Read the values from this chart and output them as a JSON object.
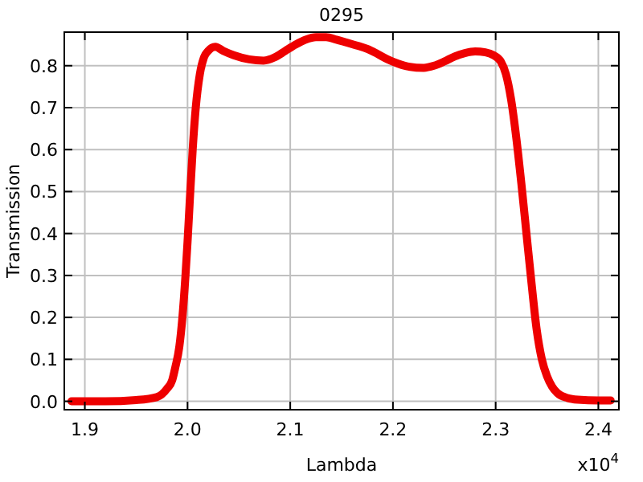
{
  "chart_data": {
    "type": "line",
    "title": "0295",
    "xlabel": "Lambda",
    "ylabel": "Transmission",
    "annotations": [
      "x10$^{4}$"
    ],
    "x": [
      1.887,
      1.92,
      1.95,
      1.97,
      1.98,
      1.985,
      1.988,
      1.992,
      1.995,
      1.998,
      2.0,
      2.002,
      2.005,
      2.008,
      2.012,
      2.016,
      2.02,
      2.027,
      2.035,
      2.045,
      2.06,
      2.074,
      2.085,
      2.095,
      2.105,
      2.115,
      2.125,
      2.135,
      2.145,
      2.155,
      2.165,
      2.175,
      2.185,
      2.195,
      2.205,
      2.215,
      2.23,
      2.24,
      2.25,
      2.26,
      2.27,
      2.28,
      2.29,
      2.298,
      2.305,
      2.31,
      2.315,
      2.32,
      2.325,
      2.33,
      2.335,
      2.34,
      2.345,
      2.35,
      2.355,
      2.36,
      2.37,
      2.38,
      2.4,
      2.412
    ],
    "series": [
      {
        "color": "#ee0000",
        "values": [
          0.0,
          0.0,
          0.003,
          0.01,
          0.03,
          0.05,
          0.08,
          0.13,
          0.2,
          0.3,
          0.38,
          0.47,
          0.6,
          0.7,
          0.78,
          0.82,
          0.835,
          0.845,
          0.835,
          0.825,
          0.815,
          0.812,
          0.82,
          0.835,
          0.85,
          0.862,
          0.868,
          0.868,
          0.862,
          0.855,
          0.848,
          0.84,
          0.828,
          0.815,
          0.805,
          0.798,
          0.795,
          0.8,
          0.81,
          0.822,
          0.83,
          0.834,
          0.832,
          0.825,
          0.81,
          0.78,
          0.72,
          0.63,
          0.52,
          0.4,
          0.28,
          0.17,
          0.1,
          0.06,
          0.035,
          0.02,
          0.008,
          0.004,
          0.002,
          0.002
        ]
      }
    ],
    "xlim": [
      1.88,
      2.42
    ],
    "xticks": [
      1.9,
      {
        "value": 2,
        "label": "2.0"
      },
      2.1,
      2.2,
      2.3,
      2.4
    ],
    "ylim": [
      -0.02,
      0.88
    ],
    "yticks": [
      {
        "value": 0,
        "label": "0.0"
      },
      0.1,
      0.2,
      0.3,
      0.4,
      0.5,
      0.6,
      0.7,
      0.8
    ],
    "grid": true,
    "line_style": "solid",
    "marker": "none"
  }
}
